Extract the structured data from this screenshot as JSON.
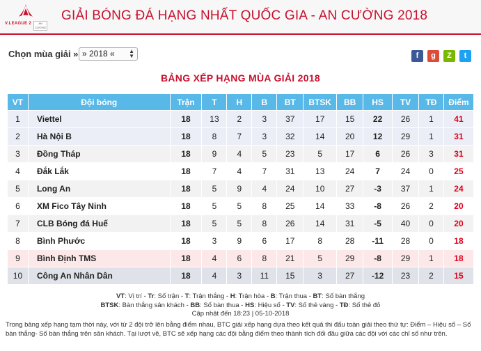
{
  "header": {
    "logo_text": "V.LEAGUE 2",
    "sponsor_text": "AN CƯỜNG",
    "title": "GIẢI BÓNG ĐÁ HẠNG NHẤT QUỐC GIA - AN CƯỜNG 2018"
  },
  "season": {
    "label": "Chọn mùa giải »",
    "selected": "» 2018 «"
  },
  "social": [
    {
      "name": "facebook-icon",
      "glyph": "f",
      "color": "#3b5998"
    },
    {
      "name": "google-plus-icon",
      "glyph": "g",
      "color": "#dd4b39"
    },
    {
      "name": "zing-icon",
      "glyph": "Z",
      "color": "#7ab800"
    },
    {
      "name": "twitter-icon",
      "glyph": "t",
      "color": "#1da1f2"
    }
  ],
  "table": {
    "title": "BẢNG XẾP HẠNG MÙA GIẢI 2018",
    "headers": [
      "VT",
      "Đội bóng",
      "Trận",
      "T",
      "H",
      "B",
      "BT",
      "BTSK",
      "BB",
      "HS",
      "TV",
      "TĐ",
      "Điểm"
    ],
    "rows": [
      {
        "vt": "1",
        "team": "Viettel",
        "tran": "18",
        "t": "13",
        "h": "2",
        "b": "3",
        "bt": "37",
        "btsk": "17",
        "bb": "15",
        "hs": "22",
        "tv": "26",
        "td": "1",
        "diem": "41"
      },
      {
        "vt": "2",
        "team": "Hà Nội B",
        "tran": "18",
        "t": "8",
        "h": "7",
        "b": "3",
        "bt": "32",
        "btsk": "14",
        "bb": "20",
        "hs": "12",
        "tv": "29",
        "td": "1",
        "diem": "31"
      },
      {
        "vt": "3",
        "team": "Đồng Tháp",
        "tran": "18",
        "t": "9",
        "h": "4",
        "b": "5",
        "bt": "23",
        "btsk": "5",
        "bb": "17",
        "hs": "6",
        "tv": "26",
        "td": "3",
        "diem": "31"
      },
      {
        "vt": "4",
        "team": "Đắk Lắk",
        "tran": "18",
        "t": "7",
        "h": "4",
        "b": "7",
        "bt": "31",
        "btsk": "13",
        "bb": "24",
        "hs": "7",
        "tv": "24",
        "td": "0",
        "diem": "25"
      },
      {
        "vt": "5",
        "team": "Long An",
        "tran": "18",
        "t": "5",
        "h": "9",
        "b": "4",
        "bt": "24",
        "btsk": "10",
        "bb": "27",
        "hs": "-3",
        "tv": "37",
        "td": "1",
        "diem": "24"
      },
      {
        "vt": "6",
        "team": "XM Fico Tây Ninh",
        "tran": "18",
        "t": "5",
        "h": "5",
        "b": "8",
        "bt": "25",
        "btsk": "14",
        "bb": "33",
        "hs": "-8",
        "tv": "26",
        "td": "2",
        "diem": "20"
      },
      {
        "vt": "7",
        "team": "CLB Bóng đá Huế",
        "tran": "18",
        "t": "5",
        "h": "5",
        "b": "8",
        "bt": "26",
        "btsk": "14",
        "bb": "31",
        "hs": "-5",
        "tv": "40",
        "td": "0",
        "diem": "20"
      },
      {
        "vt": "8",
        "team": "Bình Phước",
        "tran": "18",
        "t": "3",
        "h": "9",
        "b": "6",
        "bt": "17",
        "btsk": "8",
        "bb": "28",
        "hs": "-11",
        "tv": "28",
        "td": "0",
        "diem": "18"
      },
      {
        "vt": "9",
        "team": "Bình Định TMS",
        "tran": "18",
        "t": "4",
        "h": "6",
        "b": "8",
        "bt": "21",
        "btsk": "5",
        "bb": "29",
        "hs": "-8",
        "tv": "29",
        "td": "1",
        "diem": "18"
      },
      {
        "vt": "10",
        "team": "Công An Nhân Dân",
        "tran": "18",
        "t": "4",
        "h": "3",
        "b": "11",
        "bt": "15",
        "btsk": "3",
        "bb": "27",
        "hs": "-12",
        "tv": "23",
        "td": "2",
        "diem": "15"
      }
    ]
  },
  "legend": {
    "line1": [
      {
        "k": "VT",
        "v": ": Vị trí"
      },
      {
        "k": "Tr",
        "v": ": Số trận"
      },
      {
        "k": "T",
        "v": ": Trận thắng"
      },
      {
        "k": "H",
        "v": ": Trận hòa"
      },
      {
        "k": "B",
        "v": ": Trận thua"
      },
      {
        "k": "BT",
        "v": ": Số bàn thắng"
      }
    ],
    "line2": [
      {
        "k": "BTSK",
        "v": ": Bàn thắng sân khách"
      },
      {
        "k": "BB",
        "v": ": Số bàn thua"
      },
      {
        "k": "HS",
        "v": ": Hiệu số"
      },
      {
        "k": "TV",
        "v": ": Số thẻ vàng"
      },
      {
        "k": "TĐ",
        "v": ": Số thẻ đỏ"
      }
    ],
    "updated": "Cập nhật đến 18:23 | 05-10-2018"
  },
  "note": "Trong bảng xếp hạng tạm thời này, với từ 2 đội trở lên bằng điểm nhau, BTC giải xếp hạng dựa theo kết quả thi đấu toàn giải theo thứ tự: Điểm – Hiệu số – Số bàn thắng- Số bàn thắng trên sân khách. Tại lượt về, BTC sẽ xếp hạng các đội bằng điểm theo thành tích đối đầu giữa các đội với các chỉ số như trên."
}
